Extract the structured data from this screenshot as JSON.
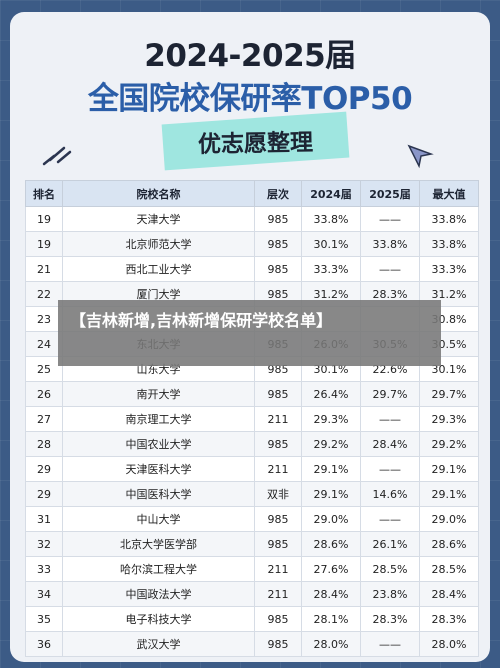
{
  "header": {
    "year_title": "2024-2025届",
    "main_title": "全国院校保研率TOP50",
    "subtitle": "优志愿整理"
  },
  "table": {
    "columns": [
      "排名",
      "院校名称",
      "层次",
      "2024届",
      "2025届",
      "最大值"
    ],
    "rows": [
      [
        "19",
        "天津大学",
        "985",
        "33.8%",
        "——",
        "33.8%"
      ],
      [
        "19",
        "北京师范大学",
        "985",
        "30.1%",
        "33.8%",
        "33.8%"
      ],
      [
        "21",
        "西北工业大学",
        "985",
        "33.3%",
        "——",
        "33.3%"
      ],
      [
        "22",
        "厦门大学",
        "985",
        "31.2%",
        "28.3%",
        "31.2%"
      ],
      [
        "23",
        "",
        "",
        "",
        "",
        "30.8%"
      ],
      [
        "24",
        "东北大学",
        "985",
        "26.0%",
        "30.5%",
        "30.5%"
      ],
      [
        "25",
        "山东大学",
        "985",
        "30.1%",
        "22.6%",
        "30.1%"
      ],
      [
        "26",
        "南开大学",
        "985",
        "26.4%",
        "29.7%",
        "29.7%"
      ],
      [
        "27",
        "南京理工大学",
        "211",
        "29.3%",
        "——",
        "29.3%"
      ],
      [
        "28",
        "中国农业大学",
        "985",
        "29.2%",
        "28.4%",
        "29.2%"
      ],
      [
        "29",
        "天津医科大学",
        "211",
        "29.1%",
        "——",
        "29.1%"
      ],
      [
        "29",
        "中国医科大学",
        "双非",
        "29.1%",
        "14.6%",
        "29.1%"
      ],
      [
        "31",
        "中山大学",
        "985",
        "29.0%",
        "——",
        "29.0%"
      ],
      [
        "32",
        "北京大学医学部",
        "985",
        "28.6%",
        "26.1%",
        "28.6%"
      ],
      [
        "33",
        "哈尔滨工程大学",
        "211",
        "27.6%",
        "28.5%",
        "28.5%"
      ],
      [
        "34",
        "中国政法大学",
        "211",
        "28.4%",
        "23.8%",
        "28.4%"
      ],
      [
        "35",
        "电子科技大学",
        "985",
        "28.1%",
        "28.3%",
        "28.3%"
      ],
      [
        "36",
        "武汉大学",
        "985",
        "28.0%",
        "——",
        "28.0%"
      ]
    ]
  },
  "overlay": {
    "text": "【吉林新增,吉林新增保研学校名单】"
  }
}
